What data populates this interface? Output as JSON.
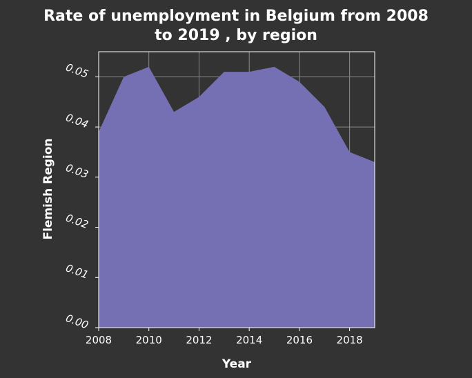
{
  "chart_data": {
    "type": "area",
    "title_lines": [
      "Rate of unemployment in Belgium from 2008",
      "to 2019 , by region"
    ],
    "xlabel": "Year",
    "ylabel": "Flemish Region",
    "xlim": [
      2008,
      2019
    ],
    "ylim": [
      0,
      0.055
    ],
    "x_ticks": [
      2008,
      2010,
      2012,
      2014,
      2016,
      2018
    ],
    "x_tick_labels": [
      "2008",
      "2010",
      "2012",
      "2014",
      "2016",
      "2018"
    ],
    "y_ticks": [
      0,
      0.01,
      0.02,
      0.03,
      0.04,
      0.05
    ],
    "y_tick_labels": [
      "0.00",
      "0.01",
      "0.02",
      "0.03",
      "0.04",
      "0.05"
    ],
    "grid": true,
    "series": [
      {
        "x": [
          2008,
          2009,
          2010,
          2011,
          2012,
          2013,
          2014,
          2015,
          2016,
          2017,
          2018,
          2019
        ],
        "values": [
          0.039,
          0.05,
          0.052,
          0.043,
          0.046,
          0.051,
          0.051,
          0.052,
          0.049,
          0.044,
          0.035,
          0.033
        ]
      }
    ],
    "colors": {
      "background": "#333333",
      "fill": "#7570b3",
      "grid": "#8c8c8c",
      "text": "#ffffff"
    }
  }
}
